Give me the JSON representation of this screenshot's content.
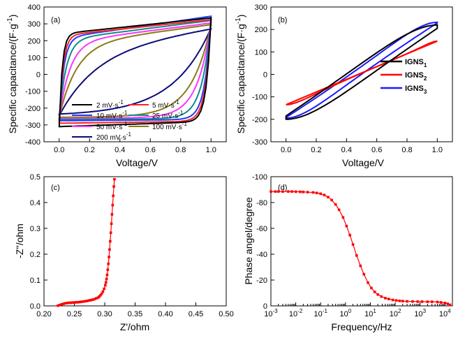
{
  "chart_data": [
    {
      "panel": "(a)",
      "type": "line",
      "xlabel": "Voltage/V",
      "ylabel": "Specific capacitance/(F·g⁻¹)",
      "xlim": [
        -0.1,
        1.1
      ],
      "ylim": [
        -400,
        400
      ],
      "xticks": [
        0.0,
        0.2,
        0.4,
        0.6,
        0.8,
        1.0
      ],
      "yticks": [
        -400,
        -300,
        -200,
        -100,
        0,
        100,
        200,
        300,
        400
      ],
      "xtick_labels": [
        "0.0",
        "0.2",
        "0.4",
        "0.6",
        "0.8",
        "1.0"
      ],
      "ytick_labels": [
        "-400",
        "-300",
        "-200",
        "-100",
        "0",
        "100",
        "200",
        "300",
        "400"
      ],
      "legend": "lower-left, two columns",
      "series": [
        {
          "name": "2 mV·s⁻¹",
          "color": "#000000",
          "loop": {
            "x0": 0.0,
            "x1": 1.0,
            "top_start": 240,
            "top_end": 335,
            "bottom_start": -310,
            "bottom_end": -280,
            "rise": 0.02,
            "fall": 0.03
          }
        },
        {
          "name": "5 mV·s⁻¹",
          "color": "#ff2020",
          "loop": {
            "x0": 0.0,
            "x1": 1.0,
            "top_start": 230,
            "top_end": 325,
            "bottom_start": -290,
            "bottom_end": -278,
            "rise": 0.025,
            "fall": 0.035
          }
        },
        {
          "name": "10 mV·s⁻¹",
          "color": "#1f3bff",
          "loop": {
            "x0": 0.0,
            "x1": 1.0,
            "top_start": 215,
            "top_end": 345,
            "bottom_start": -275,
            "bottom_end": -268,
            "rise": 0.03,
            "fall": 0.04
          }
        },
        {
          "name": "25 mV·s⁻¹",
          "color": "#138a8a",
          "loop": {
            "x0": 0.0,
            "x1": 1.0,
            "top_start": 205,
            "top_end": 320,
            "bottom_start": -268,
            "bottom_end": -262,
            "rise": 0.045,
            "fall": 0.06
          }
        },
        {
          "name": "50 mV·s⁻¹",
          "color": "#ff33ff",
          "loop": {
            "x0": 0.0,
            "x1": 1.0,
            "top_start": 190,
            "top_end": 305,
            "bottom_start": -262,
            "bottom_end": -255,
            "rise": 0.07,
            "fall": 0.09
          }
        },
        {
          "name": "100 mV·s⁻¹",
          "color": "#8a7a14",
          "loop": {
            "x0": 0.0,
            "x1": 1.0,
            "top_start": 175,
            "top_end": 295,
            "bottom_start": -255,
            "bottom_end": -250,
            "rise": 0.11,
            "fall": 0.13
          }
        },
        {
          "name": "200 mV·s⁻¹",
          "color": "#0a0a7a",
          "loop": {
            "x0": 0.0,
            "x1": 1.0,
            "top_start": 130,
            "top_end": 275,
            "bottom_start": -245,
            "bottom_end": -240,
            "rise": 0.22,
            "fall": 0.25
          }
        }
      ]
    },
    {
      "panel": "(b)",
      "type": "line",
      "xlabel": "Voltage/V",
      "ylabel": "Specific capacitance/(F·g⁻¹)",
      "xlim": [
        -0.1,
        1.1
      ],
      "ylim": [
        -300,
        300
      ],
      "xticks": [
        0.0,
        0.2,
        0.4,
        0.6,
        0.8,
        1.0
      ],
      "yticks": [
        -300,
        -200,
        -100,
        0,
        100,
        200,
        300
      ],
      "xtick_labels": [
        "0.0",
        "0.2",
        "0.4",
        "0.6",
        "0.8",
        "1.0"
      ],
      "ytick_labels": [
        "-300",
        "-200",
        "-100",
        "0",
        "100",
        "200",
        "300"
      ],
      "legend": "right-middle",
      "series": [
        {
          "name": "IGNS₁",
          "color": "#000000",
          "loop": {
            "x0": 0.0,
            "x1": 1.0,
            "top_start": -200,
            "top_end": 220,
            "bottom_start": -200,
            "bottom_end": 220,
            "rise": 0.3,
            "fall": 0.3
          }
        },
        {
          "name": "IGNS₂",
          "color": "#ff0000",
          "loop": {
            "x0": 0.0,
            "x1": 1.0,
            "top_start": -135,
            "top_end": 148,
            "bottom_start": -135,
            "bottom_end": 148,
            "rise": 0.1,
            "fall": 0.05
          }
        },
        {
          "name": "IGNS₃",
          "color": "#1a1aff",
          "loop": {
            "x0": 0.0,
            "x1": 1.0,
            "top_start": -195,
            "top_end": 232,
            "bottom_start": -195,
            "bottom_end": 232,
            "rise": 0.2,
            "fall": 0.2
          }
        }
      ]
    },
    {
      "panel": "(c)",
      "type": "scatter",
      "xlabel": "Z'/ohm",
      "ylabel": "-Z''/ohm",
      "xlim": [
        0.2,
        0.5
      ],
      "ylim": [
        0.0,
        0.5
      ],
      "xticks": [
        0.2,
        0.25,
        0.3,
        0.35,
        0.4,
        0.45,
        0.5
      ],
      "yticks": [
        0.0,
        0.1,
        0.2,
        0.3,
        0.4,
        0.5
      ],
      "xtick_labels": [
        "0.20",
        "0.25",
        "0.30",
        "0.35",
        "0.40",
        "0.45",
        "0.50"
      ],
      "ytick_labels": [
        "0.0",
        "0.1",
        "0.2",
        "0.3",
        "0.4",
        "0.5"
      ],
      "color": "#ff0000",
      "x": [
        0.223,
        0.226,
        0.229,
        0.232,
        0.235,
        0.238,
        0.241,
        0.244,
        0.247,
        0.25,
        0.253,
        0.256,
        0.259,
        0.262,
        0.265,
        0.268,
        0.271,
        0.274,
        0.277,
        0.28,
        0.283,
        0.286,
        0.289,
        0.291,
        0.293,
        0.295,
        0.297,
        0.299,
        0.301,
        0.302,
        0.303,
        0.304,
        0.305,
        0.306,
        0.307,
        0.308,
        0.309,
        0.31,
        0.311,
        0.312,
        0.313,
        0.314,
        0.315,
        0.316
      ],
      "y": [
        0.001,
        0.003,
        0.006,
        0.008,
        0.01,
        0.011,
        0.012,
        0.012,
        0.013,
        0.013,
        0.014,
        0.014,
        0.015,
        0.016,
        0.017,
        0.018,
        0.019,
        0.021,
        0.022,
        0.024,
        0.026,
        0.029,
        0.032,
        0.036,
        0.041,
        0.047,
        0.055,
        0.066,
        0.08,
        0.091,
        0.104,
        0.12,
        0.14,
        0.163,
        0.189,
        0.218,
        0.25,
        0.283,
        0.318,
        0.354,
        0.39,
        0.426,
        0.462,
        0.49
      ]
    },
    {
      "panel": "(d)",
      "type": "scatter",
      "xlabel": "Frequency/Hz",
      "ylabel": "Phase angel/degree",
      "xscale": "log",
      "xlim": [
        0.001,
        20000
      ],
      "ylim": [
        0,
        -100
      ],
      "yinverted": true,
      "xticks": [
        0.001,
        0.01,
        0.1,
        1,
        10,
        100,
        1000,
        10000
      ],
      "yticks": [
        0,
        -20,
        -40,
        -60,
        -80,
        -100
      ],
      "xtick_labels": [
        "10-3",
        "10-2",
        "10-1",
        "100",
        "101",
        "102",
        "103",
        "104"
      ],
      "ytick_labels": [
        "0",
        "-20",
        "-40",
        "-60",
        "-80",
        "-100"
      ],
      "color": "#ff0000",
      "x": [
        0.001,
        0.0015,
        0.002,
        0.003,
        0.005,
        0.007,
        0.01,
        0.015,
        0.02,
        0.03,
        0.05,
        0.07,
        0.1,
        0.14,
        0.2,
        0.28,
        0.4,
        0.55,
        0.8,
        1.1,
        1.5,
        2.0,
        2.8,
        4.0,
        5.5,
        8.0,
        11,
        15,
        20,
        28,
        40,
        55,
        80,
        110,
        150,
        200,
        300,
        500,
        800,
        1200,
        2000,
        3000,
        5000,
        7000,
        10000,
        13000,
        16000
      ],
      "y": [
        -88.5,
        -88.5,
        -88.5,
        -88.5,
        -88.5,
        -88.5,
        -88.4,
        -88.3,
        -88.2,
        -88.0,
        -87.8,
        -87.4,
        -86.8,
        -85.8,
        -84.2,
        -81.9,
        -78.5,
        -74.4,
        -68.5,
        -61.8,
        -54.8,
        -47.5,
        -39.0,
        -31.0,
        -24.5,
        -18.0,
        -13.8,
        -10.8,
        -8.8,
        -7.2,
        -6.0,
        -5.3,
        -4.6,
        -4.2,
        -3.9,
        -3.7,
        -3.5,
        -3.4,
        -3.3,
        -3.3,
        -3.2,
        -3.2,
        -3.0,
        -2.7,
        -2.2,
        -1.6,
        -0.8
      ]
    }
  ]
}
